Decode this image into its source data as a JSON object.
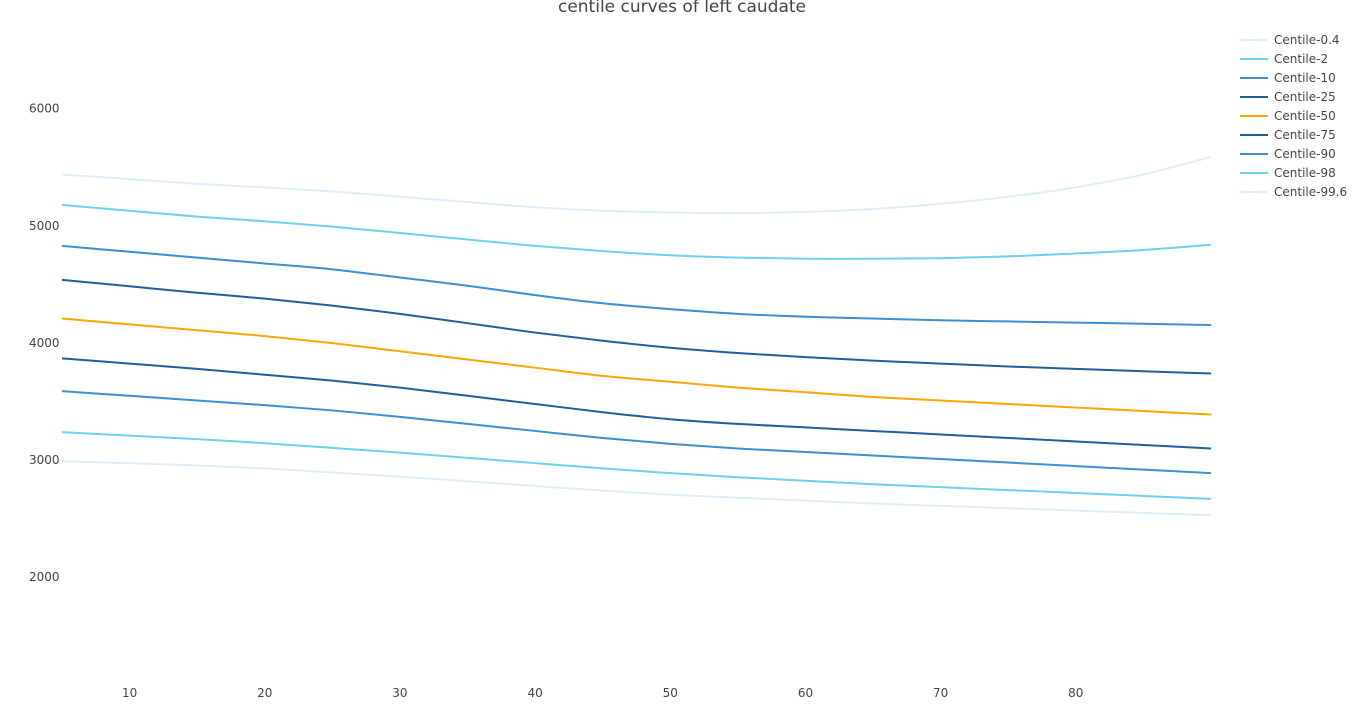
{
  "chart_data": {
    "type": "line",
    "title": "centile curves of left caudate",
    "xlabel": "",
    "ylabel": "",
    "xlim": [
      5,
      90
    ],
    "ylim": [
      1250,
      6800
    ],
    "x_ticks": [
      10,
      20,
      30,
      40,
      50,
      60,
      70,
      80
    ],
    "y_ticks": [
      2000,
      3000,
      4000,
      5000,
      6000
    ],
    "grid": false,
    "legend_position": "top-right",
    "x": [
      5,
      10,
      15,
      20,
      25,
      30,
      35,
      40,
      45,
      50,
      55,
      60,
      65,
      70,
      75,
      80,
      85,
      90
    ],
    "series": [
      {
        "name": "Centile-0.4",
        "color": "#dceefc",
        "values": [
          2980,
          2965,
          2945,
          2920,
          2885,
          2850,
          2810,
          2770,
          2730,
          2695,
          2670,
          2645,
          2620,
          2600,
          2580,
          2560,
          2540,
          2520
        ]
      },
      {
        "name": "Centile-2",
        "color": "#6dd1ef",
        "values": [
          3230,
          3200,
          3170,
          3135,
          3095,
          3055,
          3010,
          2965,
          2920,
          2880,
          2845,
          2815,
          2785,
          2760,
          2735,
          2710,
          2685,
          2660
        ]
      },
      {
        "name": "Centile-10",
        "color": "#3a8fd6",
        "values": [
          3580,
          3540,
          3500,
          3460,
          3415,
          3360,
          3300,
          3240,
          3180,
          3130,
          3090,
          3060,
          3030,
          3000,
          2970,
          2940,
          2910,
          2880
        ]
      },
      {
        "name": "Centile-25",
        "color": "#1f5f99",
        "values": [
          3860,
          3815,
          3770,
          3720,
          3670,
          3610,
          3540,
          3470,
          3400,
          3340,
          3300,
          3270,
          3240,
          3210,
          3180,
          3150,
          3120,
          3090
        ]
      },
      {
        "name": "Centile-50",
        "color": "#ffa600",
        "values": [
          4200,
          4150,
          4100,
          4050,
          3990,
          3920,
          3850,
          3780,
          3710,
          3660,
          3610,
          3570,
          3530,
          3500,
          3470,
          3440,
          3410,
          3380
        ]
      },
      {
        "name": "Centile-75",
        "color": "#1f5f99",
        "values": [
          4530,
          4475,
          4420,
          4370,
          4310,
          4240,
          4160,
          4080,
          4010,
          3950,
          3905,
          3870,
          3840,
          3815,
          3790,
          3770,
          3750,
          3730
        ]
      },
      {
        "name": "Centile-90",
        "color": "#3a8fd6",
        "values": [
          4820,
          4770,
          4720,
          4670,
          4620,
          4550,
          4480,
          4400,
          4330,
          4280,
          4240,
          4215,
          4200,
          4185,
          4175,
          4165,
          4155,
          4145
        ]
      },
      {
        "name": "Centile-98",
        "color": "#6dd1ef",
        "values": [
          5170,
          5120,
          5070,
          5030,
          4985,
          4930,
          4875,
          4820,
          4775,
          4740,
          4720,
          4710,
          4710,
          4715,
          4730,
          4755,
          4785,
          4830
        ]
      },
      {
        "name": "Centile-99.6",
        "color": "#dceefc",
        "values": [
          5430,
          5390,
          5350,
          5320,
          5285,
          5240,
          5195,
          5150,
          5120,
          5105,
          5100,
          5110,
          5135,
          5180,
          5240,
          5320,
          5430,
          5580
        ]
      }
    ]
  }
}
